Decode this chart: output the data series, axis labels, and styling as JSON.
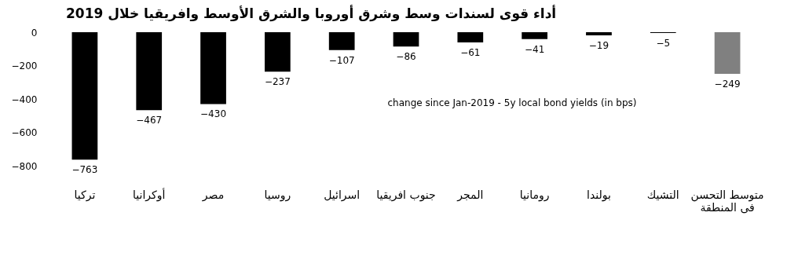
{
  "chart_data": {
    "type": "bar",
    "title": "أداء قوى لسندات وسط وشرق أوروبا والشرق الأوسط وافريقيا خلال 2019",
    "categories": [
      "تركيا",
      "أوكرانيا",
      "مصر",
      "روسيا",
      "اسرائيل",
      "جنوب افريقيا",
      "المجر",
      "رومانيا",
      "بولندا",
      "التشيك",
      "متوسط التحسن\nفى المنطقة"
    ],
    "values": [
      -763,
      -467,
      -430,
      -237,
      -107,
      -86,
      -61,
      -41,
      -19,
      -5,
      -249
    ],
    "colors": [
      "#000000",
      "#000000",
      "#000000",
      "#000000",
      "#000000",
      "#000000",
      "#000000",
      "#000000",
      "#000000",
      "#000000",
      "#808080"
    ],
    "ylim": [
      -800,
      0
    ],
    "yticks": [
      0,
      -200,
      -400,
      -600,
      -800
    ],
    "data_labels": true,
    "grid": false,
    "annotations": [
      "change since Jan-2019 - 5y local bond yields (in bps)"
    ]
  }
}
